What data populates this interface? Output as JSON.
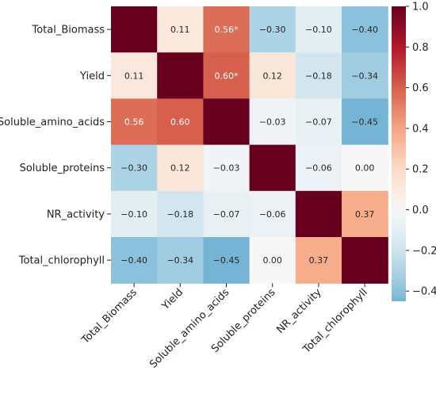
{
  "chart_data": {
    "type": "heatmap",
    "title": "",
    "variables": [
      "Total_Biomass",
      "Yield",
      "Soluble_amino_acids",
      "Soluble_proteins",
      "NR_activity",
      "Total_chlorophyll"
    ],
    "matrix": [
      [
        1.0,
        0.11,
        0.56,
        -0.3,
        -0.1,
        -0.4
      ],
      [
        0.11,
        1.0,
        0.6,
        0.12,
        -0.18,
        -0.34
      ],
      [
        0.56,
        0.6,
        1.0,
        -0.03,
        -0.07,
        -0.45
      ],
      [
        -0.3,
        0.12,
        -0.03,
        1.0,
        -0.06,
        0.0
      ],
      [
        -0.1,
        -0.18,
        -0.07,
        -0.06,
        1.0,
        0.37
      ],
      [
        -0.4,
        -0.34,
        -0.45,
        0.0,
        0.37,
        1.0
      ]
    ],
    "cell_labels": [
      [
        "",
        "0.11",
        "0.56*",
        "−0.30",
        "−0.10",
        "−0.40"
      ],
      [
        "0.11",
        "",
        "0.60*",
        "0.12",
        "−0.18",
        "−0.34"
      ],
      [
        "0.56",
        "0.60",
        "",
        "−0.03",
        "−0.07",
        "−0.45"
      ],
      [
        "−0.30",
        "0.12",
        "−0.03",
        "",
        "−0.06",
        "0.00"
      ],
      [
        "−0.10",
        "−0.18",
        "−0.07",
        "−0.06",
        "",
        "0.37"
      ],
      [
        "−0.40",
        "−0.34",
        "−0.45",
        "0.00",
        "0.37",
        ""
      ]
    ],
    "colorbar": {
      "min": -0.45,
      "max": 1.0,
      "center": 0,
      "ticks": [
        1.0,
        0.8,
        0.6,
        0.4,
        0.2,
        0.0,
        -0.2,
        -0.4
      ],
      "tick_labels": [
        "1.0",
        "0.8",
        "0.6",
        "0.4",
        "0.2",
        "0.0",
        "−0.2",
        "−0.4"
      ]
    },
    "colors": {
      "negative_end": "#4a9ac4",
      "center": "#f7f7f7",
      "positive_end": "#67001f",
      "label_dark_bg": "#ffffff",
      "label_light_bg": "#262626"
    }
  }
}
